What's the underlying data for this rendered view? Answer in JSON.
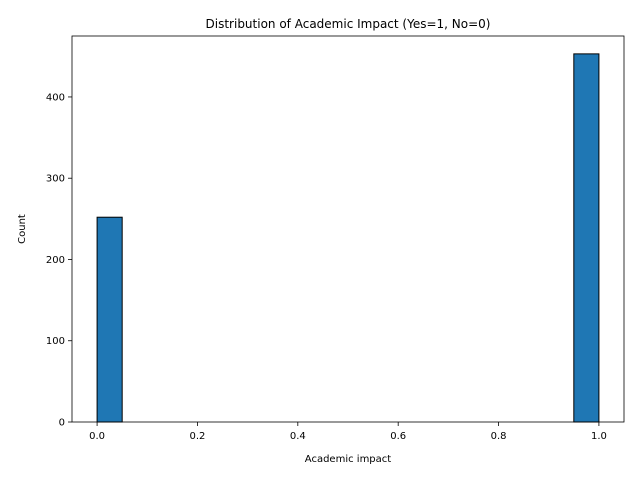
{
  "chart_data": {
    "type": "bar",
    "title": "Distribution of Academic Impact (Yes=1, No=0)",
    "xlabel": "Academic impact",
    "ylabel": "Count",
    "xlim": [
      -0.05,
      1.05
    ],
    "ylim": [
      0,
      475
    ],
    "x_ticks": [
      0.0,
      0.2,
      0.4,
      0.6,
      0.8,
      1.0
    ],
    "x_tick_labels": [
      "0.0",
      "0.2",
      "0.4",
      "0.6",
      "0.8",
      "1.0"
    ],
    "y_ticks": [
      0,
      100,
      200,
      300,
      400
    ],
    "y_tick_labels": [
      "0",
      "100",
      "200",
      "300",
      "400"
    ],
    "bins": [
      {
        "x0": 0.0,
        "x1": 0.05,
        "value": 252
      },
      {
        "x0": 0.95,
        "x1": 1.0,
        "value": 453
      }
    ],
    "bar_color": "#1f77b4",
    "edge_color": "#000000",
    "grid": false,
    "legend": "none"
  }
}
